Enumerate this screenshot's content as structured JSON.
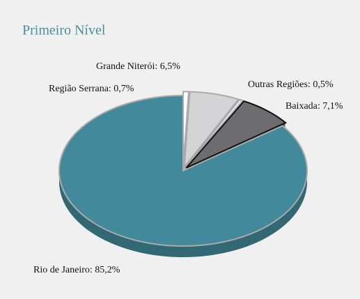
{
  "chart_data": {
    "type": "pie",
    "title": "Primeiro Nível",
    "values": [
      0.7,
      6.5,
      0.5,
      7.1,
      85.2
    ],
    "value_labels": [
      "Região Serrana: 0,7%",
      "Grande Niterói: 6,5%",
      "Outras Regiões: 0,5%",
      "Baixada: 7,1%",
      "Rio de Janeiro: 85,2%"
    ],
    "colors": [
      "#ffffff",
      "#d4d4d6",
      "#e8e8ea",
      "#6d6d70",
      "#428a9b"
    ]
  }
}
